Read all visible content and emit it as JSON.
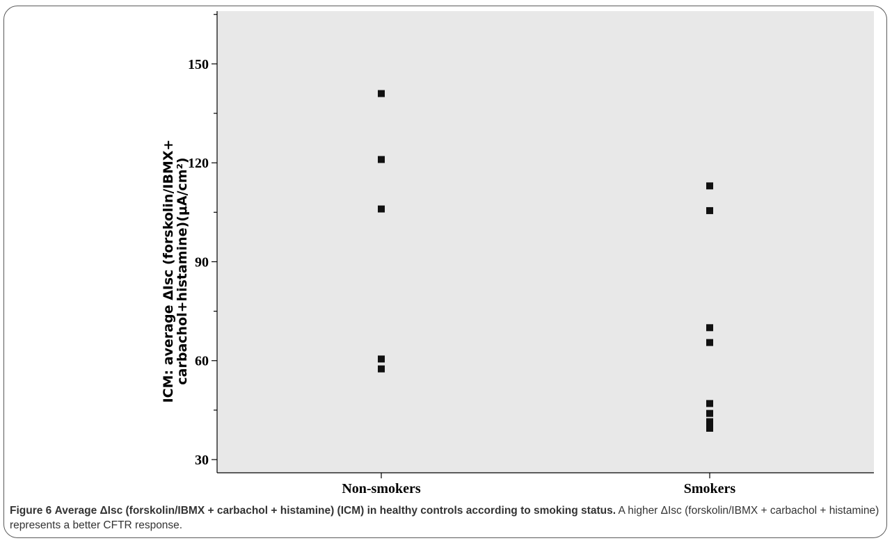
{
  "chart_data": {
    "type": "scatter",
    "categories": [
      "Non-smokers",
      "Smokers"
    ],
    "series": [
      {
        "values": [
          [
            141,
            121,
            106,
            60.5,
            57.5
          ],
          [
            113,
            105.5,
            70,
            65.5,
            47,
            44,
            41.5,
            40.5,
            39.5
          ]
        ]
      }
    ],
    "ylabel_line1": "ICM: average ΔIsc (forskolin/IBMX+",
    "ylabel_line2": "carbachol+histamine)(μA/cm²)",
    "ylim": [
      26,
      166
    ],
    "yticks": [
      30,
      60,
      90,
      120,
      150
    ],
    "grid": false,
    "plot_background": "#e8e8e8",
    "marker_color": "#111111"
  },
  "caption": {
    "label": "Figure 6",
    "title": "Average ΔIsc (forskolin/IBMX + carbachol + histamine) (ICM) in healthy controls according to smoking status.",
    "text": "A higher ΔIsc (forskolin/IBMX + carbachol + histamine) represents a better CFTR response."
  }
}
